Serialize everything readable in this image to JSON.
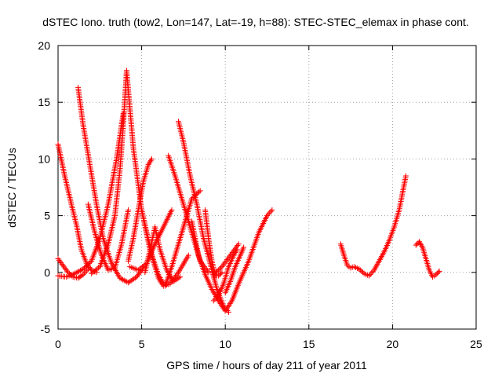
{
  "chart_data": {
    "type": "scatter",
    "title": "dSTEC Iono. truth (tow2, Lon=147, Lat=-19, h=88): STEC-STEC_elemax in phase cont.",
    "xlabel": "GPS time / hours of day 211 of year 2011",
    "ylabel": "dSTEC  / TECUs",
    "xlim": [
      0,
      25
    ],
    "ylim": [
      -5,
      20
    ],
    "xticks": [
      0,
      5,
      10,
      15,
      20,
      25
    ],
    "yticks": [
      -5,
      0,
      5,
      10,
      15,
      20
    ],
    "grid": true,
    "marker": "+",
    "color": "#ff0000",
    "series": [
      {
        "x": [
          0.0,
          0.4,
          0.8,
          1.1,
          1.4,
          1.7,
          2.0,
          2.3
        ],
        "y": [
          11.3,
          8.5,
          6.0,
          4.2,
          2.0,
          0.8,
          0.2,
          0.0
        ]
      },
      {
        "x": [
          0.0,
          0.3,
          0.6,
          0.9,
          1.2,
          1.5,
          1.8
        ],
        "y": [
          1.2,
          0.6,
          0.0,
          -0.4,
          -0.5,
          -0.2,
          0.3
        ]
      },
      {
        "x": [
          0.0,
          0.5,
          1.0,
          1.5,
          2.0,
          2.5,
          3.0,
          3.5,
          3.9
        ],
        "y": [
          -0.3,
          -0.4,
          -0.1,
          0.3,
          1.0,
          3.0,
          6.0,
          10.0,
          14.0
        ]
      },
      {
        "x": [
          1.2,
          1.5,
          1.9,
          2.3,
          2.7,
          3.2,
          3.7,
          4.2,
          4.7,
          5.1
        ],
        "y": [
          16.3,
          13.0,
          9.5,
          6.0,
          3.0,
          0.8,
          -0.5,
          -0.9,
          -0.4,
          0.4
        ]
      },
      {
        "x": [
          1.8,
          2.2,
          2.6,
          3.0,
          3.4,
          3.8,
          4.2
        ],
        "y": [
          6.0,
          3.5,
          1.5,
          0.2,
          0.4,
          2.5,
          5.5
        ]
      },
      {
        "x": [
          2.0,
          2.5,
          3.0,
          3.4,
          3.7,
          3.9,
          4.1,
          4.5,
          5.0,
          5.5,
          6.0,
          6.3
        ],
        "y": [
          -0.1,
          0.5,
          2.5,
          5.0,
          9.0,
          13.0,
          17.8,
          11.0,
          5.5,
          2.0,
          -0.2,
          -1.0
        ]
      },
      {
        "x": [
          4.2,
          4.5,
          4.8,
          5.1,
          5.4,
          5.6
        ],
        "y": [
          1.0,
          3.0,
          5.5,
          8.0,
          9.5,
          10.0
        ]
      },
      {
        "x": [
          4.3,
          4.8,
          5.3,
          5.8,
          6.3,
          6.8
        ],
        "y": [
          0.5,
          0.2,
          0.8,
          2.5,
          4.0,
          5.5
        ]
      },
      {
        "x": [
          5.0,
          5.3,
          5.7,
          6.0,
          6.3,
          6.7,
          7.2,
          7.8
        ],
        "y": [
          5.5,
          3.5,
          1.0,
          -0.5,
          -1.2,
          -1.0,
          0.0,
          1.5
        ]
      },
      {
        "x": [
          5.2,
          5.5,
          5.8,
          6.1,
          6.5,
          6.9,
          7.3
        ],
        "y": [
          0.0,
          2.0,
          4.0,
          2.0,
          0.2,
          -0.8,
          -0.4
        ]
      },
      {
        "x": [
          6.6,
          7.0,
          7.5,
          8.0,
          8.5,
          9.0
        ],
        "y": [
          10.3,
          8.5,
          6.0,
          3.5,
          1.0,
          0.0
        ]
      },
      {
        "x": [
          6.4,
          6.8,
          7.2,
          7.6,
          8.0,
          8.5
        ],
        "y": [
          -1.2,
          0.5,
          2.5,
          4.5,
          6.5,
          7.2
        ]
      },
      {
        "x": [
          7.2,
          7.5,
          7.9,
          8.3,
          8.7,
          9.1,
          9.5,
          9.9,
          10.2
        ],
        "y": [
          13.3,
          11.5,
          8.5,
          6.0,
          3.0,
          0.8,
          -1.5,
          -3.0,
          -3.5
        ]
      },
      {
        "x": [
          8.0,
          8.4,
          8.8,
          9.2,
          9.6,
          10.0,
          10.4,
          10.8,
          11.4,
          12.0,
          12.5,
          12.8
        ],
        "y": [
          4.5,
          1.5,
          -0.2,
          -1.5,
          -2.5,
          -3.4,
          -2.5,
          -1.0,
          1.0,
          3.5,
          5.0,
          5.5
        ]
      },
      {
        "x": [
          8.8,
          9.0,
          9.2,
          9.4,
          9.6,
          9.8
        ],
        "y": [
          5.5,
          3.0,
          1.0,
          -0.3,
          -0.3,
          0.0
        ]
      },
      {
        "x": [
          9.3,
          9.6,
          9.9,
          10.2,
          10.5,
          10.7
        ],
        "y": [
          -2.5,
          -2.0,
          -1.0,
          0.5,
          1.5,
          2.0
        ]
      },
      {
        "x": [
          10.0,
          10.3,
          10.6,
          10.9,
          11.1
        ],
        "y": [
          -1.8,
          -0.8,
          0.5,
          1.5,
          2.2
        ]
      },
      {
        "x": [
          9.3,
          9.8,
          10.3,
          10.8
        ],
        "y": [
          -0.2,
          0.5,
          1.5,
          2.5
        ]
      },
      {
        "x": [
          16.9,
          17.1,
          17.3,
          17.5,
          17.7,
          18.0,
          18.3,
          18.6,
          18.9,
          19.2,
          19.5,
          19.8,
          20.1,
          20.4,
          20.6,
          20.8
        ],
        "y": [
          2.5,
          1.5,
          0.6,
          0.4,
          0.5,
          0.3,
          -0.1,
          -0.3,
          0.2,
          1.0,
          1.8,
          2.8,
          4.0,
          5.5,
          7.0,
          8.5
        ]
      },
      {
        "x": [
          21.4,
          21.6,
          21.8,
          22.0,
          22.2,
          22.4,
          22.6,
          22.8
        ],
        "y": [
          2.4,
          2.7,
          2.2,
          1.2,
          0.2,
          -0.4,
          -0.2,
          0.1
        ]
      }
    ]
  }
}
